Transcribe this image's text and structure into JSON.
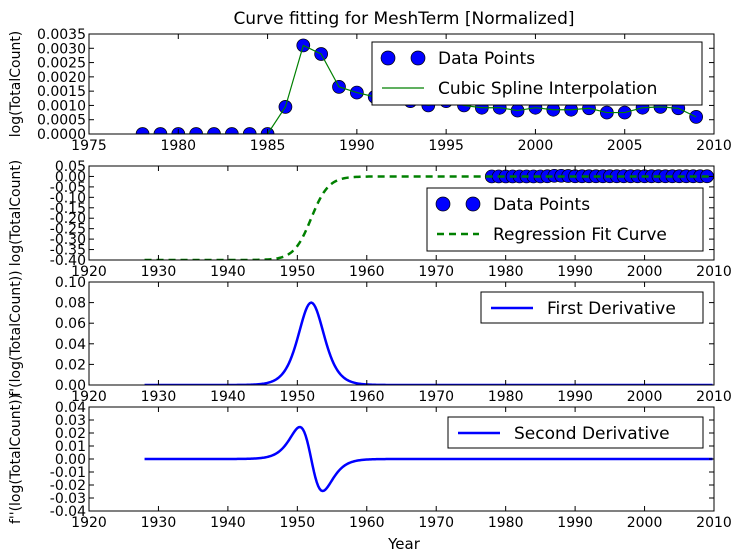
{
  "title": "Curve fitting for MeshTerm [Normalized]",
  "xlabel_bottom": "Year",
  "colors": {
    "blue": "#0000ff",
    "green": "#008000"
  },
  "chart_data": [
    {
      "type": "scatter",
      "title": "Curve fitting for MeshTerm [Normalized]",
      "ylabel": "log(TotalCount)",
      "xlim": [
        1975,
        2010
      ],
      "ylim": [
        0.0,
        0.0035
      ],
      "xticks": [
        "1975",
        "1980",
        "1985",
        "1990",
        "1995",
        "2000",
        "2005",
        "2010"
      ],
      "yticks": [
        "0.0000",
        "0.0005",
        "0.0010",
        "0.0015",
        "0.0020",
        "0.0025",
        "0.0030",
        "0.0035"
      ],
      "legend_position": "top-right",
      "series": [
        {
          "name": "Data Points",
          "kind": "markers",
          "color": "#0000ff",
          "x": [
            1978,
            1979,
            1980,
            1981,
            1982,
            1983,
            1984,
            1985,
            1986,
            1987,
            1988,
            1989,
            1990,
            1991,
            1992,
            1993,
            1994,
            1995,
            1996,
            1997,
            1998,
            1999,
            2000,
            2001,
            2002,
            2003,
            2004,
            2005,
            2006,
            2007,
            2008,
            2009
          ],
          "y": [
            0.0,
            0.0,
            0.0,
            0.0,
            0.0,
            0.0,
            0.0,
            0.0,
            0.00095,
            0.0031,
            0.0028,
            0.00165,
            0.00145,
            0.0013,
            0.00125,
            0.00115,
            0.001,
            0.00115,
            0.001,
            0.00092,
            0.00092,
            0.00082,
            0.00092,
            0.00085,
            0.00085,
            0.0009,
            0.00075,
            0.00075,
            0.00092,
            0.00095,
            0.0009,
            0.0006
          ]
        },
        {
          "name": "Cubic Spline Interpolation",
          "kind": "line",
          "color": "#008000",
          "x": [
            1978,
            1979,
            1980,
            1981,
            1982,
            1983,
            1984,
            1985,
            1986,
            1987,
            1988,
            1989,
            1990,
            1991,
            1992,
            1993,
            1994,
            1995,
            1996,
            1997,
            1998,
            1999,
            2000,
            2001,
            2002,
            2003,
            2004,
            2005,
            2006,
            2007,
            2008,
            2009
          ],
          "y": [
            0.0,
            0.0,
            0.0,
            0.0,
            0.0,
            0.0,
            0.0,
            0.0,
            0.00095,
            0.0031,
            0.0028,
            0.00165,
            0.00145,
            0.0013,
            0.00125,
            0.00115,
            0.001,
            0.00115,
            0.001,
            0.00092,
            0.00092,
            0.00082,
            0.00092,
            0.00085,
            0.00085,
            0.0009,
            0.00075,
            0.00075,
            0.00092,
            0.00095,
            0.0009,
            0.0006
          ]
        }
      ]
    },
    {
      "type": "line",
      "ylabel": "log(TotalCount)",
      "xlim": [
        1920,
        2010
      ],
      "ylim": [
        -0.4,
        0.05
      ],
      "xticks": [
        "1920",
        "1930",
        "1940",
        "1950",
        "1960",
        "1970",
        "1980",
        "1990",
        "2000",
        "2010"
      ],
      "yticks": [
        "-0.40",
        "-0.35",
        "-0.30",
        "-0.25",
        "-0.20",
        "-0.15",
        "-0.10",
        "-0.05",
        "0.00",
        "0.05"
      ],
      "legend_position": "right",
      "series": [
        {
          "name": "Data Points",
          "kind": "markers",
          "color": "#0000ff",
          "x": [
            1978,
            1979,
            1980,
            1981,
            1982,
            1983,
            1984,
            1985,
            1986,
            1987,
            1988,
            1989,
            1990,
            1991,
            1992,
            1993,
            1994,
            1995,
            1996,
            1997,
            1998,
            1999,
            2000,
            2001,
            2002,
            2003,
            2004,
            2005,
            2006,
            2007,
            2008,
            2009
          ],
          "y": [
            0.0,
            0.0,
            0.0,
            0.0,
            0.0,
            0.0,
            0.0,
            0.0,
            0.001,
            0.003,
            0.003,
            0.002,
            0.001,
            0.001,
            0.001,
            0.001,
            0.001,
            0.001,
            0.001,
            0.001,
            0.001,
            0.001,
            0.001,
            0.001,
            0.001,
            0.001,
            0.001,
            0.001,
            0.001,
            0.001,
            0.001,
            0.001
          ]
        },
        {
          "name": "Regression Fit Curve",
          "kind": "dashed",
          "color": "#008000",
          "logistic": {
            "x_start": 1928,
            "x_end": 2010,
            "low": -0.4,
            "high": 0.0,
            "x0": 1952,
            "k": 0.8
          }
        }
      ]
    },
    {
      "type": "line",
      "ylabel": "f'(log(TotalCount))",
      "xlim": [
        1920,
        2010
      ],
      "ylim": [
        0.0,
        0.1
      ],
      "xticks": [
        "1920",
        "1930",
        "1940",
        "1950",
        "1960",
        "1970",
        "1980",
        "1990",
        "2000",
        "2010"
      ],
      "yticks": [
        "0.00",
        "0.02",
        "0.04",
        "0.06",
        "0.08",
        "0.10"
      ],
      "legend_position": "top-right",
      "series": [
        {
          "name": "First Derivative",
          "color": "#0000ff",
          "derivative_order": 1,
          "x_start": 1928,
          "x_end": 2010
        }
      ]
    },
    {
      "type": "line",
      "ylabel": "f''(log(TotalCount))",
      "xlabel": "Year",
      "xlim": [
        1920,
        2010
      ],
      "ylim": [
        -0.04,
        0.04
      ],
      "xticks": [
        "1920",
        "1930",
        "1940",
        "1950",
        "1960",
        "1970",
        "1980",
        "1990",
        "2000",
        "2010"
      ],
      "yticks": [
        "-0.04",
        "-0.03",
        "-0.02",
        "-0.01",
        "0.00",
        "0.01",
        "0.02",
        "0.03",
        "0.04"
      ],
      "legend_position": "top-right",
      "series": [
        {
          "name": "Second Derivative",
          "color": "#0000ff",
          "derivative_order": 2,
          "x_start": 1928,
          "x_end": 2010
        }
      ]
    }
  ]
}
